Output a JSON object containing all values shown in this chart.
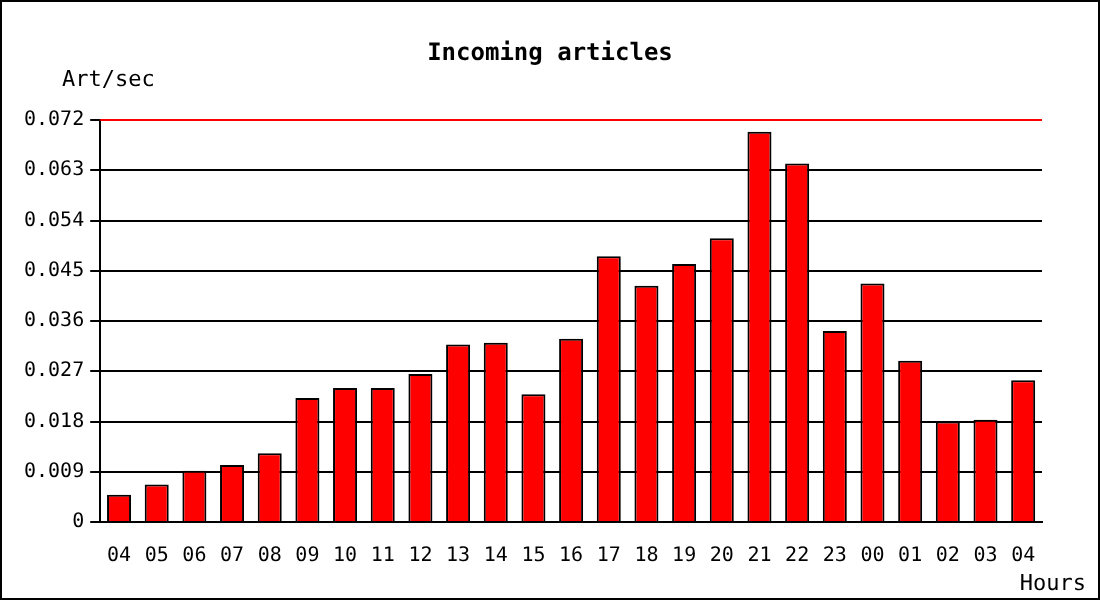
{
  "chart_data": {
    "type": "bar",
    "title": "Incoming articles",
    "ylabel": "Art/sec",
    "xlabel": "Hours",
    "categories": [
      "04",
      "05",
      "06",
      "07",
      "08",
      "09",
      "10",
      "11",
      "12",
      "13",
      "14",
      "15",
      "16",
      "17",
      "18",
      "19",
      "20",
      "21",
      "22",
      "23",
      "00",
      "01",
      "02",
      "03",
      "04"
    ],
    "series": [
      {
        "color": "#ff0000",
        "values": [
          0.0049,
          0.0067,
          0.0092,
          0.0102,
          0.0123,
          0.0222,
          0.024,
          0.024,
          0.0265,
          0.0318,
          0.0321,
          0.0229,
          0.0328,
          0.0476,
          0.0423,
          0.0462,
          0.0508,
          0.0699,
          0.0642,
          0.0342,
          0.0427,
          0.0289,
          0.018,
          0.0183,
          0.0254
        ]
      }
    ],
    "ylim": [
      0,
      0.072
    ],
    "yticks": [
      0,
      0.009,
      0.018,
      0.027,
      0.036,
      0.045,
      0.054,
      0.063,
      0.072
    ],
    "ref_lines": [
      {
        "axis": "y",
        "value": 0.072,
        "color": "#ff0000"
      }
    ],
    "grid": "y",
    "legend": false
  }
}
